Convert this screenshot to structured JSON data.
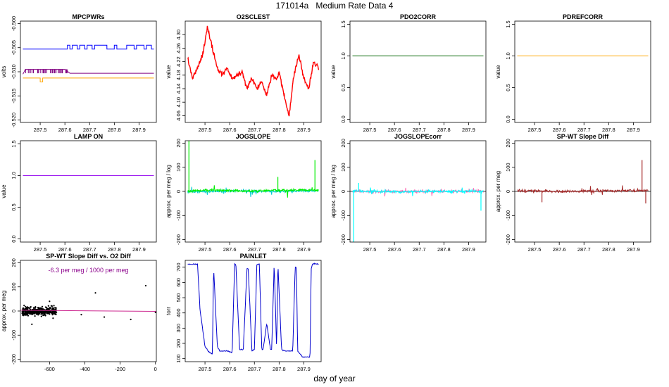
{
  "page": {
    "title": "171014a   Medium Rate Data 4",
    "x_caption": "day of year"
  },
  "chart_data": [
    {
      "id": "mpcpwrs",
      "type": "line",
      "title": "MPCPWRs",
      "xlabel": "",
      "ylabel": "volts",
      "xlim": [
        287.42,
        287.97
      ],
      "xticks": [
        287.5,
        287.6,
        287.7,
        287.8,
        287.9
      ],
      "ylim": [
        -0.5205,
        -0.4995
      ],
      "yticks": [
        -0.52,
        -0.515,
        -0.51,
        -0.505,
        -0.5
      ],
      "series": [
        {
          "color": "#0000ff",
          "type": "step",
          "x": [
            287.43,
            287.61,
            287.61,
            287.62,
            287.62,
            287.63,
            287.63,
            287.65,
            287.65,
            287.66,
            287.66,
            287.68,
            287.68,
            287.69,
            287.69,
            287.71,
            287.71,
            287.72,
            287.72,
            287.77,
            287.77,
            287.8,
            287.8,
            287.81,
            287.81,
            287.85,
            287.85,
            287.88,
            287.88,
            287.89,
            287.89,
            287.92,
            287.92,
            287.93,
            287.93,
            287.95,
            287.95,
            287.96
          ],
          "y": [
            -0.5053,
            -0.5053,
            -0.5045,
            -0.5045,
            -0.5053,
            -0.5053,
            -0.5045,
            -0.5045,
            -0.5053,
            -0.5053,
            -0.5045,
            -0.5045,
            -0.5053,
            -0.5053,
            -0.5045,
            -0.5045,
            -0.5053,
            -0.5053,
            -0.5045,
            -0.5045,
            -0.5053,
            -0.5053,
            -0.5045,
            -0.5045,
            -0.5053,
            -0.5053,
            -0.5045,
            -0.5045,
            -0.5053,
            -0.5053,
            -0.5045,
            -0.5045,
            -0.5053,
            -0.5053,
            -0.5045,
            -0.5045,
            -0.5053,
            -0.5053
          ]
        },
        {
          "color": "#800080",
          "type": "noisy",
          "x": [
            287.43,
            287.44,
            287.46,
            287.48,
            287.5,
            287.52,
            287.54,
            287.56,
            287.58,
            287.6,
            287.62,
            287.7,
            287.8,
            287.9,
            287.96
          ],
          "y": [
            -0.5105,
            -0.5095,
            -0.5095,
            -0.5095,
            -0.5095,
            -0.5095,
            -0.5095,
            -0.5095,
            -0.5095,
            -0.5095,
            -0.5103,
            -0.5103,
            -0.5103,
            -0.5103,
            -0.5103
          ]
        },
        {
          "color": "#ffa500",
          "type": "step",
          "x": [
            287.43,
            287.5,
            287.5,
            287.51,
            287.51,
            287.96
          ],
          "y": [
            -0.5113,
            -0.5113,
            -0.5121,
            -0.5121,
            -0.5113,
            -0.5113
          ]
        }
      ]
    },
    {
      "id": "o2sclest",
      "type": "line",
      "title": "O2SCLEST",
      "xlabel": "",
      "ylabel": "value",
      "xlim": [
        287.42,
        287.97
      ],
      "xticks": [
        287.5,
        287.6,
        287.7,
        287.8,
        287.9
      ],
      "ylim": [
        4.04,
        4.34
      ],
      "yticks": [
        4.06,
        4.1,
        4.14,
        4.18,
        4.22,
        4.26,
        4.3
      ],
      "series": [
        {
          "color": "#ff0000",
          "type": "noisy",
          "x": [
            287.43,
            287.45,
            287.47,
            287.49,
            287.51,
            287.53,
            287.55,
            287.57,
            287.59,
            287.61,
            287.63,
            287.65,
            287.67,
            287.69,
            287.71,
            287.73,
            287.75,
            287.77,
            287.79,
            287.8,
            287.82,
            287.84,
            287.86,
            287.88,
            287.9,
            287.92,
            287.94,
            287.96
          ],
          "y": [
            4.23,
            4.17,
            4.2,
            4.24,
            4.32,
            4.26,
            4.2,
            4.18,
            4.2,
            4.17,
            4.18,
            4.19,
            4.14,
            4.17,
            4.14,
            4.16,
            4.12,
            4.18,
            4.17,
            4.19,
            4.12,
            4.06,
            4.18,
            4.24,
            4.17,
            4.14,
            4.22,
            4.2
          ]
        }
      ]
    },
    {
      "id": "pdo2corr",
      "type": "line",
      "title": "PDO2CORR",
      "xlabel": "",
      "ylabel": "value",
      "xlim": [
        287.42,
        287.97
      ],
      "xticks": [
        287.5,
        287.6,
        287.7,
        287.8,
        287.9
      ],
      "ylim": [
        -0.05,
        1.55
      ],
      "yticks": [
        0.0,
        0.5,
        1.0,
        1.5
      ],
      "series": [
        {
          "color": "#006400",
          "type": "line",
          "x": [
            287.43,
            287.96
          ],
          "y": [
            1.0,
            1.0
          ]
        }
      ]
    },
    {
      "id": "pdrefcorr",
      "type": "line",
      "title": "PDREFCORR",
      "xlabel": "",
      "ylabel": "value",
      "xlim": [
        287.42,
        287.97
      ],
      "xticks": [
        287.5,
        287.6,
        287.7,
        287.8,
        287.9
      ],
      "ylim": [
        -0.05,
        1.55
      ],
      "yticks": [
        0.0,
        0.5,
        1.0,
        1.5
      ],
      "series": [
        {
          "color": "#ffa500",
          "type": "line",
          "x": [
            287.43,
            287.96
          ],
          "y": [
            1.0,
            1.0
          ]
        }
      ]
    },
    {
      "id": "lampon",
      "type": "line",
      "title": "LAMP ON",
      "xlabel": "",
      "ylabel": "value",
      "xlim": [
        287.42,
        287.97
      ],
      "xticks": [
        287.5,
        287.6,
        287.7,
        287.8,
        287.9
      ],
      "ylim": [
        -0.05,
        1.55
      ],
      "yticks": [
        0.0,
        0.5,
        1.0,
        1.5
      ],
      "series": [
        {
          "color": "#a020f0",
          "type": "line",
          "x": [
            287.43,
            287.96
          ],
          "y": [
            1.0,
            1.0
          ]
        }
      ]
    },
    {
      "id": "jogslope",
      "type": "line",
      "title": "JOGSLOPE",
      "xlabel": "",
      "ylabel": "approx. per meg / log",
      "xlim": [
        287.42,
        287.97
      ],
      "xticks": [
        287.5,
        287.6,
        287.7,
        287.8,
        287.9
      ],
      "ylim": [
        -210,
        210
      ],
      "yticks": [
        -200,
        -100,
        0,
        100,
        200
      ],
      "series": [
        {
          "color": "#00ced1",
          "type": "noisy",
          "x": [
            287.43,
            287.6,
            287.8,
            287.96
          ],
          "y": [
            -2,
            2,
            0,
            3
          ]
        },
        {
          "color": "#00ee00",
          "type": "noisy",
          "x": [
            287.43,
            287.5,
            287.6,
            287.7,
            287.8,
            287.9,
            287.96
          ],
          "y": [
            0,
            5,
            3,
            2,
            4,
            6,
            5
          ]
        }
      ],
      "spikes": [
        {
          "x": 287.435,
          "y": 215,
          "color": "#00ee00"
        },
        {
          "x": 287.945,
          "y": 130,
          "color": "#00ee00"
        },
        {
          "x": 287.795,
          "y": 60,
          "color": "#00ee00"
        }
      ]
    },
    {
      "id": "jogslopecorr",
      "type": "line",
      "title": "JOGSLOPEcorr",
      "xlabel": "",
      "ylabel": "approx. per meg / log",
      "xlim": [
        287.42,
        287.97
      ],
      "xticks": [
        287.5,
        287.6,
        287.7,
        287.8,
        287.9
      ],
      "ylim": [
        -210,
        210
      ],
      "yticks": [
        -200,
        -100,
        0,
        100,
        200
      ],
      "hline": 0,
      "series": [
        {
          "color": "#ff69b4",
          "type": "noisy",
          "x": [
            287.43,
            287.96
          ],
          "y": [
            0,
            0
          ]
        },
        {
          "color": "#00ffff",
          "type": "noisy",
          "x": [
            287.43,
            287.6,
            287.8,
            287.96
          ],
          "y": [
            2,
            -2,
            1,
            0
          ]
        }
      ],
      "spikes": [
        {
          "x": 287.435,
          "y": -210,
          "color": "#00ffff"
        },
        {
          "x": 287.95,
          "y": -80,
          "color": "#00ffff"
        },
        {
          "x": 287.455,
          "y": 35,
          "color": "#00ffff"
        }
      ]
    },
    {
      "id": "spwt",
      "type": "line",
      "title": "SP-WT Slope Diff",
      "xlabel": "",
      "ylabel": "approx. per meg",
      "xlim": [
        287.42,
        287.97
      ],
      "xticks": [
        287.5,
        287.6,
        287.7,
        287.8,
        287.9
      ],
      "ylim": [
        -210,
        210
      ],
      "yticks": [
        -200,
        -100,
        0,
        100,
        200
      ],
      "hline": 0,
      "series": [
        {
          "color": "#a52a2a",
          "type": "noisy",
          "x": [
            287.43,
            287.6,
            287.8,
            287.96
          ],
          "y": [
            3,
            0,
            2,
            4
          ]
        }
      ],
      "spikes": [
        {
          "x": 287.935,
          "y": 130,
          "color": "#a52a2a"
        },
        {
          "x": 287.53,
          "y": -45,
          "color": "#a52a2a"
        },
        {
          "x": 287.95,
          "y": -50,
          "color": "#a52a2a"
        }
      ]
    },
    {
      "id": "scatter",
      "type": "scatter",
      "title": "SP-WT Slope Diff vs. O2 Diff",
      "xlabel": "",
      "ylabel": "approx. per meg",
      "xlim": [
        -765,
        5
      ],
      "xticks": [
        -600,
        -400,
        -200,
        0
      ],
      "ylim": [
        -210,
        210
      ],
      "yticks": [
        -200,
        -100,
        0,
        100,
        200
      ],
      "annotation": "-6.3 per meg / 1000 per meg",
      "annotation_color": "#8b008b",
      "fit": {
        "slope": -0.0063,
        "intercept": -1.5,
        "color": "#cd2990"
      },
      "cluster": {
        "x_min": -755,
        "x_max": -560,
        "y_center": 0,
        "y_spread": 22
      },
      "points": [
        [
          -420,
          -15
        ],
        [
          -340,
          75
        ],
        [
          -290,
          -25
        ],
        [
          -140,
          -35
        ],
        [
          -55,
          105
        ],
        [
          0,
          -5
        ],
        [
          -580,
          -30
        ],
        [
          -600,
          40
        ],
        [
          -700,
          -55
        ]
      ]
    },
    {
      "id": "painlet",
      "type": "line",
      "title": "PAINLET",
      "xlabel": "",
      "ylabel": "torr",
      "xlim": [
        287.42,
        287.97
      ],
      "xticks": [
        287.5,
        287.6,
        287.7,
        287.8,
        287.9
      ],
      "ylim": [
        80,
        745
      ],
      "yticks": [
        100,
        200,
        300,
        400,
        500,
        600,
        700
      ],
      "series": [
        {
          "color": "#0000cd",
          "type": "noisy",
          "x": [
            287.43,
            287.47,
            287.48,
            287.5,
            287.52,
            287.53,
            287.535,
            287.55,
            287.56,
            287.59,
            287.61,
            287.62,
            287.625,
            287.64,
            287.655,
            287.67,
            287.675,
            287.69,
            287.7,
            287.71,
            287.72,
            287.73,
            287.735,
            287.75,
            287.765,
            287.77,
            287.78,
            287.79,
            287.795,
            287.81,
            287.825,
            287.855,
            287.865,
            287.87,
            287.875,
            287.895,
            287.905,
            287.925,
            287.93,
            287.935,
            287.945,
            287.96
          ],
          "y": [
            720,
            720,
            420,
            180,
            135,
            135,
            700,
            180,
            150,
            150,
            140,
            720,
            720,
            160,
            160,
            690,
            690,
            150,
            160,
            720,
            720,
            160,
            160,
            330,
            160,
            160,
            725,
            160,
            725,
            160,
            150,
            150,
            700,
            700,
            150,
            110,
            110,
            110,
            690,
            720,
            725,
            720
          ]
        }
      ]
    }
  ]
}
